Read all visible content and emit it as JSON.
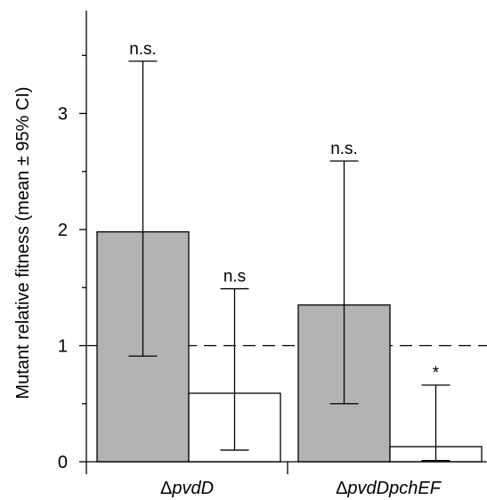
{
  "chart_data": {
    "type": "bar",
    "title": "",
    "xlabel": "",
    "ylabel": "Mutant relative fitness (mean ± 95% CI)",
    "categories": [
      {
        "prefix": "Δ",
        "name": "pvdD"
      },
      {
        "prefix": "Δ",
        "name": "pvdDpchEF"
      }
    ],
    "ylim": [
      0,
      3.9
    ],
    "yticks": [
      0,
      1,
      2,
      3
    ],
    "minor_yticks": [
      0.5,
      1.5,
      2.5,
      3.5
    ],
    "reference_line": 1,
    "series": [
      {
        "fill": "#b3b3b3",
        "values": [
          1.98,
          1.35
        ],
        "ci_low": [
          0.91,
          0.5
        ],
        "ci_high": [
          3.45,
          2.59
        ],
        "significance": [
          "n.s.",
          "n.s."
        ]
      },
      {
        "fill": "#ffffff",
        "values": [
          0.59,
          0.13
        ],
        "ci_low": [
          0.1,
          0.01
        ],
        "ci_high": [
          1.49,
          0.66
        ],
        "significance": [
          "n.s",
          "*"
        ]
      }
    ]
  }
}
